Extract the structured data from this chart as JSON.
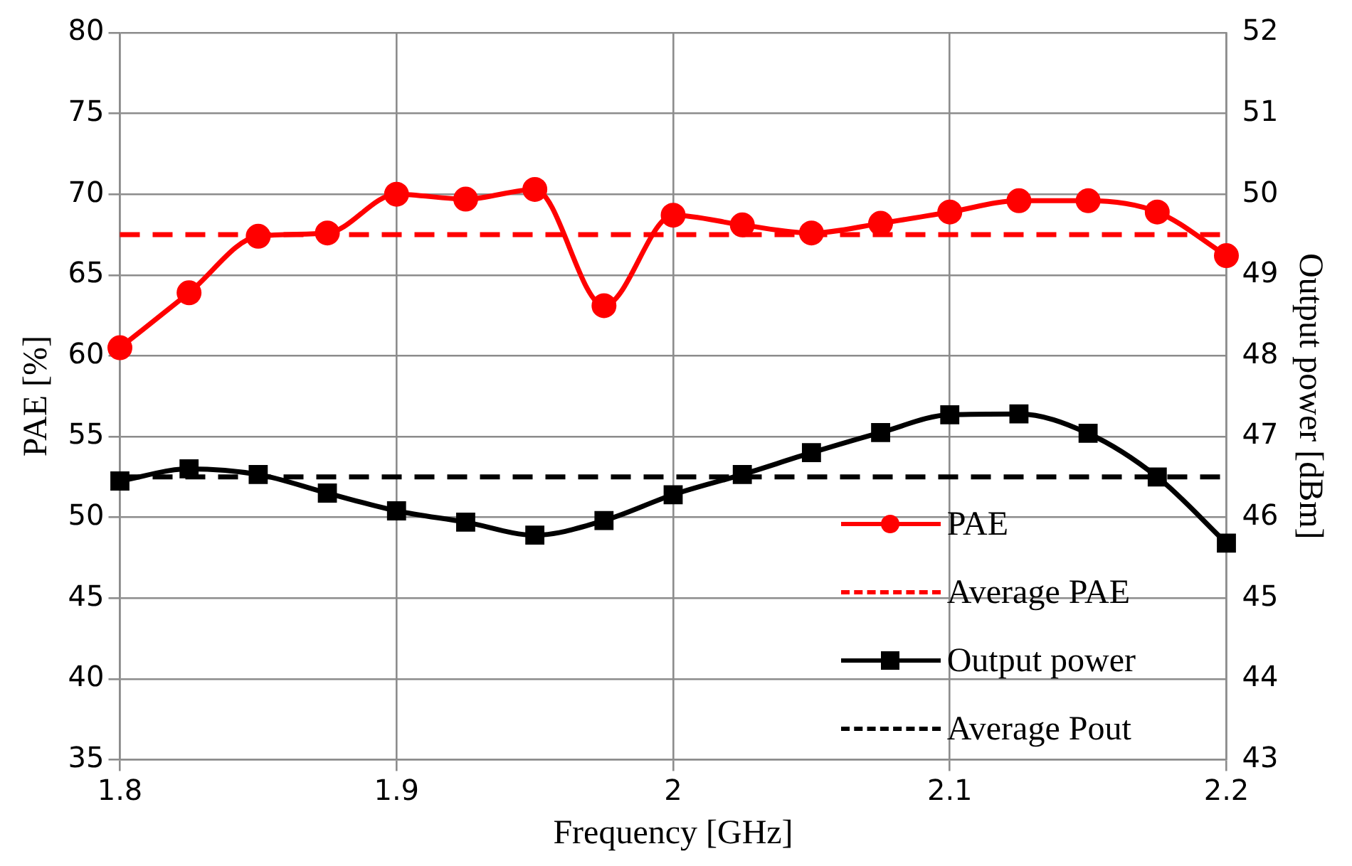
{
  "chart_data": {
    "type": "line",
    "xlabel": "Frequency [GHz]",
    "ylabel": "PAE [%]",
    "y2label": "Output power [dBm]",
    "x": [
      1.8,
      1.825,
      1.85,
      1.875,
      1.9,
      1.925,
      1.95,
      1.975,
      2.0,
      2.025,
      2.05,
      2.075,
      2.1,
      2.125,
      2.15,
      2.175,
      2.2
    ],
    "series": [
      {
        "name": "PAE",
        "color": "#ff0000",
        "marker": "circle",
        "line_style": "solid",
        "values": [
          60.5,
          63.9,
          67.4,
          67.6,
          70.0,
          69.7,
          70.3,
          63.1,
          68.7,
          68.1,
          67.6,
          68.2,
          68.9,
          69.6,
          69.6,
          68.9,
          66.2
        ]
      },
      {
        "name": "Average PAE",
        "color": "#ff0000",
        "marker": "none",
        "line_style": "dashed",
        "values": [
          67.5,
          67.5,
          67.5,
          67.5,
          67.5,
          67.5,
          67.5,
          67.5,
          67.5,
          67.5,
          67.5,
          67.5,
          67.5,
          67.5,
          67.5,
          67.5,
          67.5
        ]
      },
      {
        "name": "Output power",
        "color": "#000000",
        "marker": "square",
        "line_style": "solid",
        "axis": "y2",
        "values": [
          46.45,
          46.6,
          46.53,
          46.3,
          46.08,
          45.94,
          45.78,
          45.96,
          46.28,
          46.53,
          46.8,
          47.05,
          47.27,
          47.28,
          47.04,
          46.5,
          45.68
        ]
      },
      {
        "name": "Average Pout",
        "color": "#000000",
        "marker": "none",
        "line_style": "dashed",
        "axis": "y2",
        "values": [
          46.5,
          46.5,
          46.5,
          46.5,
          46.5,
          46.5,
          46.5,
          46.5,
          46.5,
          46.5,
          46.5,
          46.5,
          46.5,
          46.5,
          46.5,
          46.5,
          46.5
        ]
      }
    ],
    "xlim": [
      1.8,
      2.2
    ],
    "xticks": [
      1.8,
      1.9,
      2,
      2.1,
      2.2
    ],
    "ylim": [
      35,
      80
    ],
    "yticks": [
      35,
      40,
      45,
      50,
      55,
      60,
      65,
      70,
      75,
      80
    ],
    "y2lim": [
      43,
      52
    ],
    "y2ticks": [
      43,
      44,
      45,
      46,
      47,
      48,
      49,
      50,
      51,
      52
    ],
    "grid": true,
    "legend": "bottom right"
  }
}
